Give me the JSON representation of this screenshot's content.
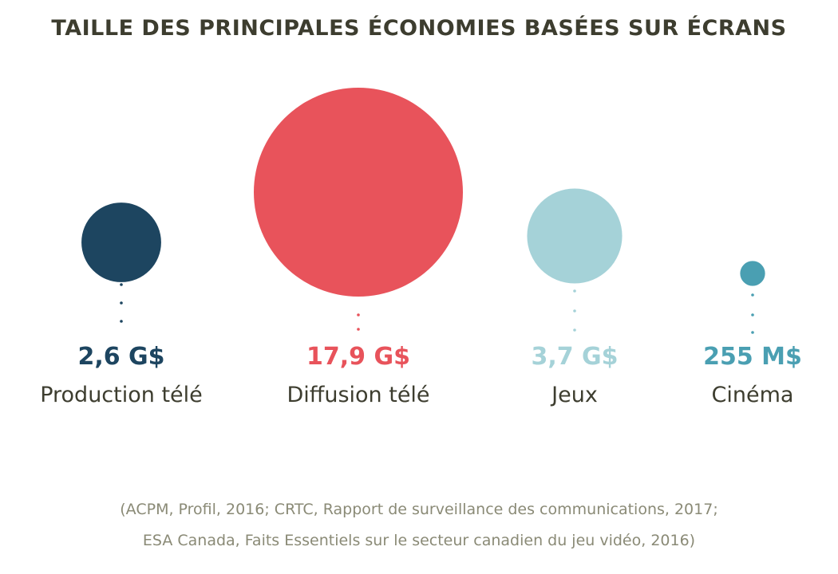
{
  "chart_data": {
    "type": "bubble",
    "title": "TAILLE DES PRINCIPALES ÉCONOMIES BASÉES SUR ÉCRANS",
    "unit": "millions $",
    "items": [
      {
        "category": "Production télé",
        "value": 2600,
        "value_label": "2,6 G$",
        "color": "#1d4560"
      },
      {
        "category": "Diffusion télé",
        "value": 17900,
        "value_label": "17,9 G$",
        "color": "#e8535b"
      },
      {
        "category": "Jeux",
        "value": 3700,
        "value_label": "3,7 G$",
        "color": "#a5d2d8"
      },
      {
        "category": "Cinéma",
        "value": 255,
        "value_label": "255 M$",
        "color": "#4a9fb2"
      }
    ]
  },
  "source": {
    "line1": "(ACPM, Profil, 2016; CRTC, Rapport de surveillance des communications, 2017;",
    "line2": "ESA Canada, Faits Essentiels sur le secteur canadien du jeu vidéo, 2016)"
  }
}
